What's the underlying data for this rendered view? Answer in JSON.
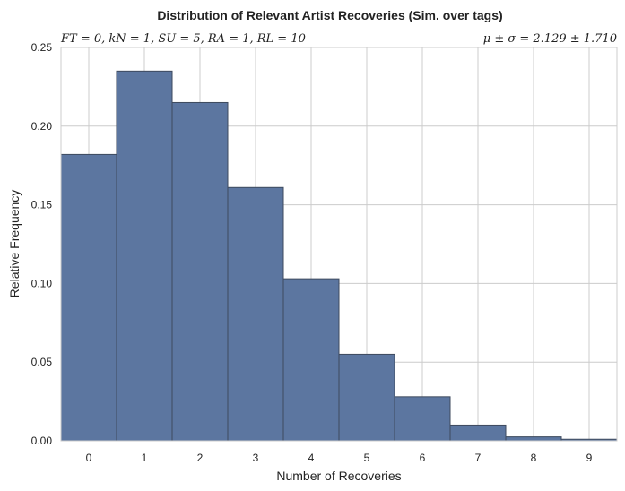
{
  "chart_data": {
    "type": "bar",
    "title": "Distribution of Relevant Artist Recoveries (Sim. over tags)",
    "subtitle_left": "FT = 0, kN = 1, SU = 5, RA = 1, RL = 10",
    "subtitle_right": "μ ± σ = 2.129 ± 1.710",
    "xlabel": "Number of Recoveries",
    "ylabel": "Relative Frequency",
    "categories": [
      "0",
      "1",
      "2",
      "3",
      "4",
      "5",
      "6",
      "7",
      "8",
      "9"
    ],
    "values": [
      0.182,
      0.235,
      0.215,
      0.161,
      0.103,
      0.055,
      0.028,
      0.01,
      0.0025,
      0.001
    ],
    "ylim": [
      0,
      0.25
    ],
    "yticks": [
      "0.00",
      "0.05",
      "0.10",
      "0.15",
      "0.20",
      "0.25"
    ],
    "grid": true,
    "bar_color": "#5c76a0",
    "edge_color": "#3e4a5e",
    "grid_color": "#cccccc"
  }
}
